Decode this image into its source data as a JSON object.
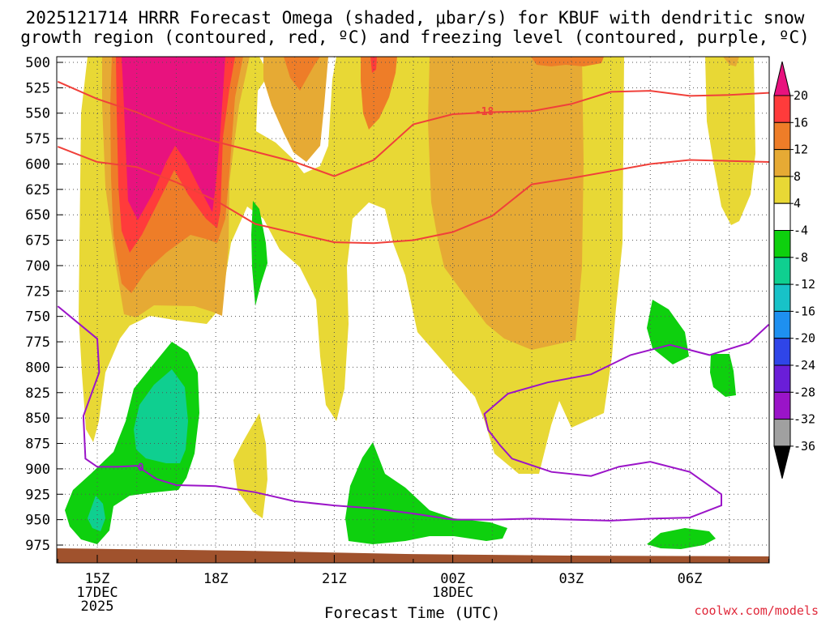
{
  "title_line1": "2025121714 HRRR Forecast Omega (shaded, μbar/s) for KBUF with dendritic snow",
  "title_line2": "growth region (contoured, red, ºC) and freezing level (contoured, purple, ºC)",
  "credit": "coolwx.com/models",
  "chart_data": {
    "type": "heatmap",
    "title": "2025121714 HRRR Forecast Omega (shaded, μbar/s) for KBUF with dendritic snow growth region (contoured, red, ºC) and freezing level (contoured, purple, ºC)",
    "xlabel": "Forecast Time (UTC)",
    "ylabel": "",
    "x_ticks": [
      {
        "label": "15Z",
        "sub1": "17DEC",
        "sub2": "2025",
        "hour": 1
      },
      {
        "label": "18Z",
        "sub1": "",
        "sub2": "",
        "hour": 4
      },
      {
        "label": "21Z",
        "sub1": "",
        "sub2": "",
        "hour": 7
      },
      {
        "label": "00Z",
        "sub1": "18DEC",
        "sub2": "",
        "hour": 10
      },
      {
        "label": "03Z",
        "sub1": "",
        "sub2": "",
        "hour": 13
      },
      {
        "label": "06Z",
        "sub1": "",
        "sub2": "",
        "hour": 16
      }
    ],
    "xlim_hours": [
      0,
      18
    ],
    "y_ticks": [
      500,
      525,
      550,
      575,
      600,
      625,
      650,
      675,
      700,
      725,
      750,
      775,
      800,
      825,
      850,
      875,
      900,
      925,
      950,
      975
    ],
    "ylim_mb": [
      495,
      990
    ],
    "grid": true,
    "colorbar": {
      "labels": [
        "20",
        "16",
        "12",
        "8",
        "4",
        "-4",
        "-8",
        "-12",
        "-16",
        "-20",
        "-24",
        "-28",
        "-32",
        "-36"
      ],
      "colors": [
        "#e8127e",
        "#ff3b3b",
        "#ee7d28",
        "#e6aa34",
        "#e8d835",
        "#ffffff",
        "#0ed00e",
        "#0fcf90",
        "#18c2c8",
        "#1e90f0",
        "#2f45e8",
        "#6a1ed8",
        "#9a14c8",
        "#a0a0a0",
        "#000000"
      ]
    },
    "contours": [
      {
        "name": "-18",
        "color": "#f0403a",
        "label": "-18",
        "label_at": {
          "hour": 10.8,
          "mb": 548
        },
        "points": [
          [
            0,
            519
          ],
          [
            1,
            536
          ],
          [
            2,
            549
          ],
          [
            3,
            566
          ],
          [
            4,
            578
          ],
          [
            5,
            588
          ],
          [
            6,
            598
          ],
          [
            7,
            612
          ],
          [
            8,
            596
          ],
          [
            9,
            561
          ],
          [
            10,
            551
          ],
          [
            11,
            549
          ],
          [
            12,
            548
          ],
          [
            13,
            541
          ],
          [
            14,
            529
          ],
          [
            15,
            528
          ],
          [
            16,
            533
          ],
          [
            17,
            532
          ],
          [
            18,
            530
          ]
        ]
      },
      {
        "name": "-12",
        "color": "#f0403a",
        "label": "",
        "points": [
          [
            0,
            583
          ],
          [
            1,
            598
          ],
          [
            2,
            603
          ],
          [
            3,
            618
          ],
          [
            4,
            636
          ],
          [
            5,
            659
          ],
          [
            6,
            668
          ],
          [
            7,
            677
          ],
          [
            8,
            678
          ],
          [
            9,
            675
          ],
          [
            10,
            667
          ],
          [
            11,
            651
          ],
          [
            12,
            620
          ],
          [
            13,
            614
          ],
          [
            14,
            607
          ],
          [
            15,
            600
          ],
          [
            16,
            596
          ],
          [
            17,
            597
          ],
          [
            18,
            598
          ]
        ]
      },
      {
        "name": "0",
        "color": "#9b14c8",
        "label": "0",
        "label_at": {
          "hour": 2.1,
          "mb": 898
        },
        "points": [
          [
            0,
            740
          ],
          [
            1,
            772
          ],
          [
            1.05,
            805
          ],
          [
            0.65,
            848
          ],
          [
            0.7,
            890
          ],
          [
            1,
            898
          ],
          [
            1.5,
            898
          ],
          [
            2,
            897
          ],
          [
            2.5,
            910
          ],
          [
            3,
            916
          ],
          [
            4,
            917
          ],
          [
            5,
            923
          ],
          [
            6,
            932
          ],
          [
            7,
            936
          ],
          [
            8,
            939
          ],
          [
            9,
            944
          ],
          [
            10,
            950
          ],
          [
            11,
            950
          ],
          [
            12,
            949
          ],
          [
            13,
            950
          ],
          [
            14,
            951
          ],
          [
            15,
            949
          ],
          [
            16,
            948
          ],
          [
            16.8,
            936
          ],
          [
            16.8,
            925
          ],
          [
            16,
            903
          ],
          [
            15,
            893
          ],
          [
            14.2,
            898
          ],
          [
            13.5,
            907
          ],
          [
            12.5,
            903
          ],
          [
            11.5,
            890
          ],
          [
            11.2,
            877
          ],
          [
            10.9,
            862
          ],
          [
            10.8,
            846
          ],
          [
            11.4,
            826
          ],
          [
            12.4,
            815
          ],
          [
            13.5,
            807
          ],
          [
            14.5,
            788
          ],
          [
            15.5,
            778
          ],
          [
            16.5,
            788
          ],
          [
            17.5,
            776
          ],
          [
            18,
            758
          ]
        ]
      }
    ]
  }
}
